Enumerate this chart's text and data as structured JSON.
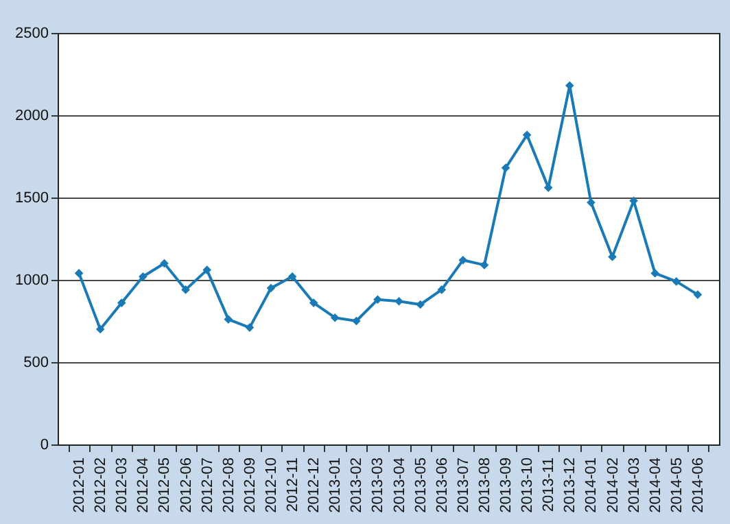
{
  "chart_data": {
    "type": "line",
    "categories": [
      "2012-01",
      "2012-02",
      "2012-03",
      "2012-04",
      "2012-05",
      "2012-06",
      "2012-07",
      "2012-08",
      "2012-09",
      "2012-10",
      "2012-11",
      "2012-12",
      "2013-01",
      "2013-02",
      "2013-03",
      "2013-04",
      "2013-05",
      "2013-06",
      "2013-07",
      "2013-08",
      "2013-09",
      "2013-10",
      "2013-11",
      "2013-12",
      "2014-01",
      "2014-02",
      "2014-03",
      "2014-04",
      "2014-05",
      "2014-06"
    ],
    "series": [
      {
        "color": "#1a7ab5",
        "values": [
          1040,
          700,
          860,
          1020,
          1100,
          940,
          1060,
          760,
          710,
          950,
          1020,
          860,
          770,
          750,
          880,
          870,
          850,
          940,
          1120,
          1090,
          1680,
          1880,
          1560,
          2180,
          1470,
          1140,
          1480,
          1040,
          990,
          910
        ]
      }
    ],
    "ylim": [
      0,
      2500
    ],
    "yticks": [
      0,
      500,
      1000,
      1500,
      2000,
      2500
    ],
    "grid": "y",
    "marker": "diamond"
  }
}
